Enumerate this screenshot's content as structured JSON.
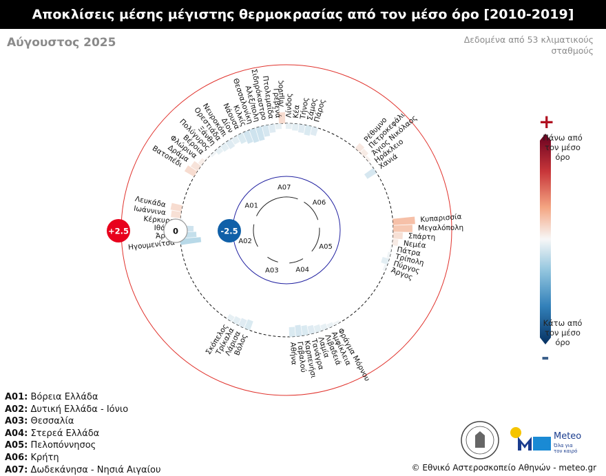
{
  "header": {
    "title": "Αποκλίσεις μέσης μέγιστης θερμοκρασίας από τον μέσο όρο [2010-2019]",
    "subtitle": "Αύγουστος 2025",
    "note": "Δεδομένα από 53 κλιματικούς σταθμούς"
  },
  "colors": {
    "warm": "#f4a582",
    "cool": "#92c5de",
    "ring_outer": "#e0302a",
    "ring_inner": "#2020a0",
    "badge_plus": "#e8001c",
    "badge_minus": "#1060a8"
  },
  "chart_data": {
    "type": "radial-bar",
    "badges": {
      "plus": "+2.5",
      "zero": "0",
      "minus": "-2.5"
    },
    "region_codes": [
      "A01",
      "A02",
      "A03",
      "A04",
      "A05",
      "A06",
      "A07"
    ],
    "series": [
      {
        "region": "A07",
        "stations": [
          {
            "name": "Λήμνος",
            "value": 0.8
          },
          {
            "name": "Λίνδος",
            "value": -0.4
          },
          {
            "name": "Κέα",
            "value": -0.5
          },
          {
            "name": "Τήνος",
            "value": -0.6
          },
          {
            "name": "Σάμος",
            "value": -0.7
          },
          {
            "name": "Πάρος",
            "value": -0.6
          }
        ]
      },
      {
        "region": "A06",
        "stations": [
          {
            "name": "Ρέθυμνο",
            "value": 0.5
          },
          {
            "name": "Πετροκεφάλι",
            "value": 0.4
          },
          {
            "name": "Άγιος Νικόλαος",
            "value": 0.2
          },
          {
            "name": "Ηράκλειο",
            "value": -0.1
          },
          {
            "name": "Χανιά",
            "value": -0.8
          }
        ]
      },
      {
        "region": "A05",
        "stations": [
          {
            "name": "Κυπαρισσία",
            "value": 1.6
          },
          {
            "name": "Μεγαλόπολη",
            "value": 1.4
          },
          {
            "name": "Σπάρτη",
            "value": 0.7
          },
          {
            "name": "Νεμέα",
            "value": 0.4
          },
          {
            "name": "Πάτρα",
            "value": -0.1
          },
          {
            "name": "Τρίπολη",
            "value": -0.2
          },
          {
            "name": "Πύργος",
            "value": -0.5
          },
          {
            "name": "Άργος",
            "value": -0.2
          }
        ]
      },
      {
        "region": "A04",
        "stations": [
          {
            "name": "Φράγμα Μόρνου",
            "value": -0.2
          },
          {
            "name": "Αμφίκλεια",
            "value": -0.3
          },
          {
            "name": "Λιβαδειά",
            "value": -0.4
          },
          {
            "name": "Λαμία",
            "value": -0.5
          },
          {
            "name": "Τανάγρα",
            "value": -0.6
          },
          {
            "name": "Καρπενήσι",
            "value": -0.7
          },
          {
            "name": "Γαβαλού",
            "value": -0.8
          },
          {
            "name": "Αθήνα",
            "value": -0.7
          }
        ]
      },
      {
        "region": "A03",
        "stations": [
          {
            "name": "Βόλος",
            "value": -0.7
          },
          {
            "name": "Λάρισα",
            "value": -0.6
          },
          {
            "name": "Τρίκαλα",
            "value": -0.5
          },
          {
            "name": "Σκόπελος",
            "value": -0.4
          }
        ]
      },
      {
        "region": "A02",
        "stations": [
          {
            "name": "Ηγουμενίτσα",
            "value": -1.5
          },
          {
            "name": "Άρτα",
            "value": -1.2
          },
          {
            "name": "Ιθάκη",
            "value": -1.0
          },
          {
            "name": "Κέρκυρα",
            "value": -0.2
          },
          {
            "name": "Ιωάννινα",
            "value": 0.7
          },
          {
            "name": "Λευκάδα",
            "value": 0.8
          }
        ]
      },
      {
        "region": "A01",
        "stations": [
          {
            "name": "Βατοπέδι",
            "value": 0.8
          },
          {
            "name": "Δράμα",
            "value": 0.6
          },
          {
            "name": "Φλώρινα",
            "value": 0.3
          },
          {
            "name": "Βέροια",
            "value": 0.1
          },
          {
            "name": "Πολύγυρος",
            "value": -0.2
          },
          {
            "name": "Ξάνθη",
            "value": -0.4
          },
          {
            "name": "Ορεστιάδα",
            "value": -0.5
          },
          {
            "name": "Νευροκόπι",
            "value": -0.6
          },
          {
            "name": "Δίον",
            "value": -0.5
          },
          {
            "name": "Νάουσα",
            "value": -0.7
          },
          {
            "name": "Κιλκίς",
            "value": -0.9
          },
          {
            "name": "Θεσσαλονίκη",
            "value": -1.0
          },
          {
            "name": "Αλεξ/πολη",
            "value": -1.0
          },
          {
            "name": "Σιδηρόκαστρο",
            "value": -0.8
          },
          {
            "name": "Πτολεμαΐδα",
            "value": -0.6
          },
          {
            "name": "Γρεβενά",
            "value": -0.4
          }
        ]
      }
    ]
  },
  "colorbar": {
    "plus": "+",
    "minus": "-",
    "top_label": "Πάνω από τον μέσο όρο",
    "bottom_label": "Κάτω από τον μέσο όρο"
  },
  "legend": [
    {
      "code": "A01:",
      "name": "Βόρεια Ελλάδα"
    },
    {
      "code": "A02:",
      "name": "Δυτική Ελλάδα - Ιόνιο"
    },
    {
      "code": "A03:",
      "name": "Θεσσαλία"
    },
    {
      "code": "A04:",
      "name": "Στερεά Ελλάδα"
    },
    {
      "code": "A05:",
      "name": "Πελοπόννησος"
    },
    {
      "code": "A06:",
      "name": "Κρήτη"
    },
    {
      "code": "A07:",
      "name": "Δωδεκάνησα - Νησιά Αιγαίου"
    }
  ],
  "footer": {
    "meteo": "Meteo",
    "meteo_tag": "Όλα για τον καιρό",
    "copyright": "© Εθνικό Αστεροσκοπείο Αθηνών - meteo.gr"
  }
}
